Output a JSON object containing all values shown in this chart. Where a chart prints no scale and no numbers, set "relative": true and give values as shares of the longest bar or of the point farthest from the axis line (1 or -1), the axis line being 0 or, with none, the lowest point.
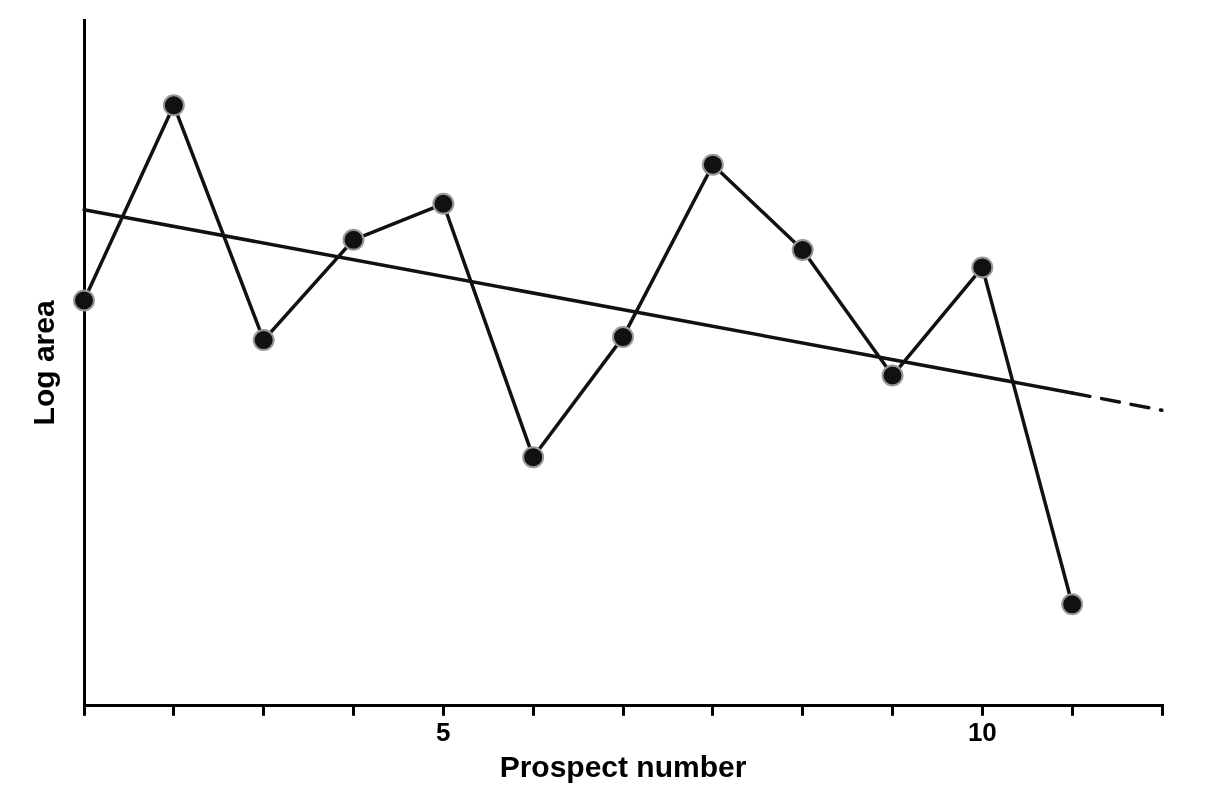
{
  "chart_data": {
    "type": "line",
    "xlabel": "Prospect number",
    "ylabel": "Log area",
    "relative": true,
    "grid": false,
    "legend": false,
    "categories": [
      null,
      null,
      null,
      null,
      "5",
      null,
      null,
      null,
      null,
      null,
      "10",
      null,
      null
    ],
    "series": [
      {
        "color": "#111111",
        "marker": "circle",
        "line_style": "solid",
        "values": [
          0.675,
          1,
          0.609,
          0.776,
          0.836,
          0.414,
          0.614,
          0.901,
          0.759,
          0.55,
          0.73,
          0.169,
          null
        ]
      },
      {
        "color": "#111111",
        "marker": "none",
        "line_style": "solid",
        "values": [
          0.826,
          null,
          null,
          null,
          null,
          null,
          null,
          null,
          null,
          null,
          null,
          0.521,
          null
        ]
      },
      {
        "color": "#111111",
        "marker": "none",
        "line_style": "dashed",
        "values": [
          null,
          null,
          null,
          null,
          null,
          null,
          null,
          null,
          null,
          null,
          null,
          0.521,
          0.492
        ]
      }
    ]
  }
}
